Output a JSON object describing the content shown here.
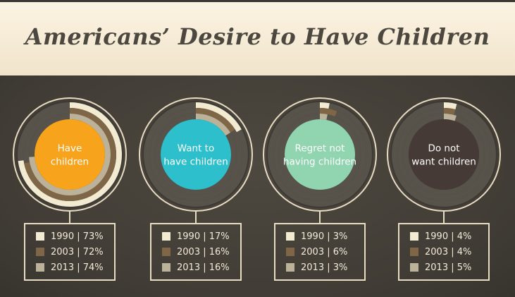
{
  "title": "Americans’ Desire to Have Children",
  "colors": {
    "1990": "#f3ead2",
    "2003": "#7f6646",
    "2013": "#bcb29a",
    "ring_outline": "#e8dcc3"
  },
  "chart_data": {
    "type": "pie",
    "years": [
      "1990",
      "2003",
      "2013"
    ],
    "series": [
      {
        "name": "Have children",
        "center_color": "#f8a31c",
        "values": [
          73,
          72,
          74
        ],
        "legend": [
          "1990 | 73%",
          "2003 | 72%",
          "2013 | 74%"
        ]
      },
      {
        "name": "Want to have children",
        "center_color": "#2dbfcb",
        "values": [
          17,
          16,
          16
        ],
        "legend": [
          "1990 | 17%",
          "2003 | 16%",
          "2013 | 16%"
        ]
      },
      {
        "name": "Regret not having children",
        "center_color": "#91d4b0",
        "values": [
          3,
          6,
          3
        ],
        "legend": [
          "1990 | 3%",
          "2003 | 6%",
          "2013 | 3%"
        ]
      },
      {
        "name": "Do not want children",
        "center_color": "#453a36",
        "values": [
          4,
          4,
          5
        ],
        "legend": [
          "1990 | 4%",
          "2003 | 4%",
          "2013 | 5%"
        ]
      }
    ]
  }
}
